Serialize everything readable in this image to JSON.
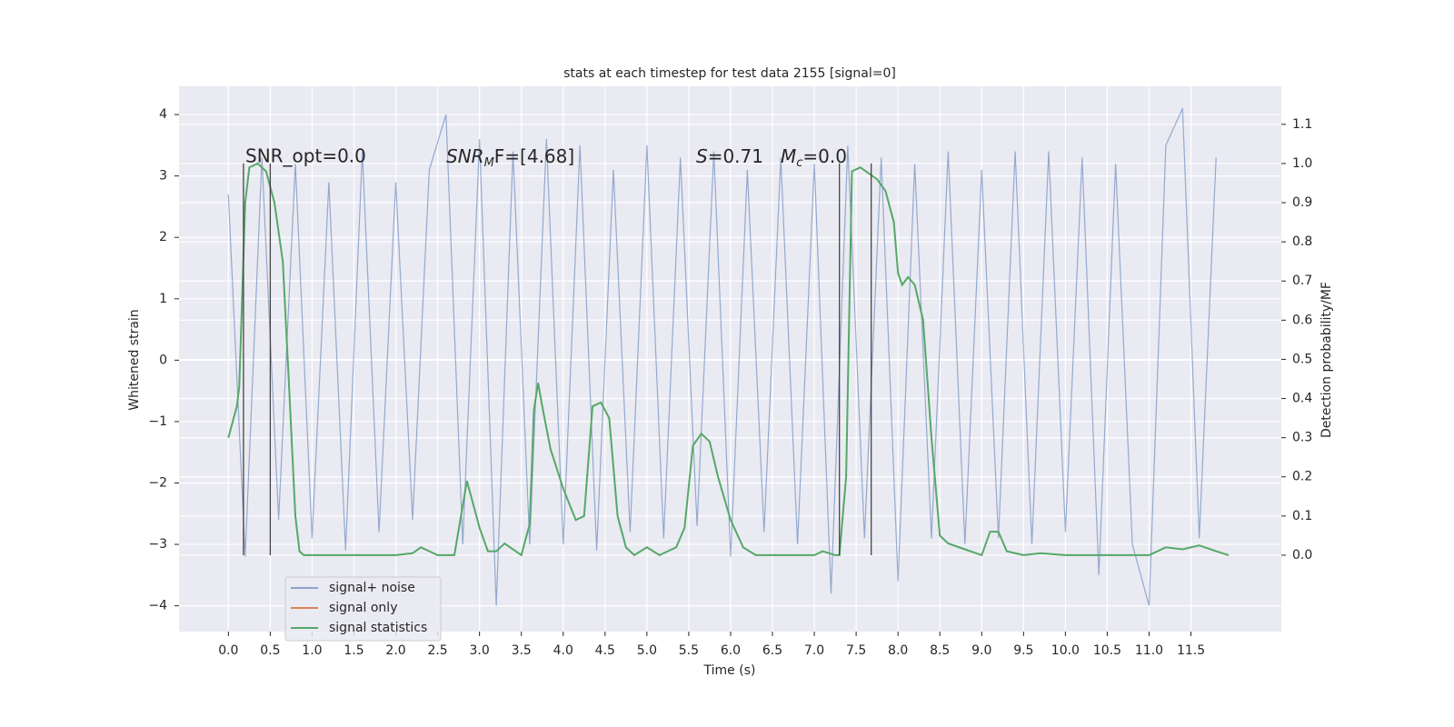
{
  "chart_data": {
    "type": "line",
    "title": "stats at each timestep for test data 2155 [signal=0]",
    "xlabel": "Time (s)",
    "ylabel": "Whitened strain",
    "y2label": "Detection probability/MF",
    "xlim": [
      -0.59,
      12.58
    ],
    "ylim": [
      -4.42,
      4.46
    ],
    "y2lim": [
      -0.195,
      1.197
    ],
    "grid": true,
    "legend": "lower left",
    "xticks": [
      {
        "value": 0,
        "label": "0.0"
      },
      {
        "value": 0.5,
        "label": "0.5"
      },
      {
        "value": 1,
        "label": "1.0"
      },
      {
        "value": 1.5,
        "label": "1.5"
      },
      {
        "value": 2,
        "label": "2.0"
      },
      {
        "value": 2.5,
        "label": "2.5"
      },
      {
        "value": 3,
        "label": "3.0"
      },
      {
        "value": 3.5,
        "label": "3.5"
      },
      {
        "value": 4,
        "label": "4.0"
      },
      {
        "value": 4.5,
        "label": "4.5"
      },
      {
        "value": 5,
        "label": "5.0"
      },
      {
        "value": 5.5,
        "label": "5.5"
      },
      {
        "value": 6,
        "label": "6.0"
      },
      {
        "value": 6.5,
        "label": "6.5"
      },
      {
        "value": 7,
        "label": "7.0"
      },
      {
        "value": 7.5,
        "label": "7.5"
      },
      {
        "value": 8,
        "label": "8.0"
      },
      {
        "value": 8.5,
        "label": "8.5"
      },
      {
        "value": 9,
        "label": "9.0"
      },
      {
        "value": 9.5,
        "label": "9.5"
      },
      {
        "value": 10,
        "label": "10.0"
      },
      {
        "value": 10.5,
        "label": "10.5"
      },
      {
        "value": 11,
        "label": "11.0"
      },
      {
        "value": 11.5,
        "label": "11.5"
      }
    ],
    "yticks": [
      {
        "value": -4,
        "label": "−4"
      },
      {
        "value": -3,
        "label": "−3"
      },
      {
        "value": -2,
        "label": "−2"
      },
      {
        "value": -1,
        "label": "−1"
      },
      0,
      1,
      2,
      3,
      4
    ],
    "y2ticks": [
      {
        "value": 0,
        "label": "0.0"
      },
      {
        "value": 0.1,
        "label": "0.1"
      },
      {
        "value": 0.2,
        "label": "0.2"
      },
      {
        "value": 0.3,
        "label": "0.3"
      },
      {
        "value": 0.4,
        "label": "0.4"
      },
      {
        "value": 0.5,
        "label": "0.5"
      },
      {
        "value": 0.6,
        "label": "0.6"
      },
      {
        "value": 0.7,
        "label": "0.7"
      },
      {
        "value": 0.8,
        "label": "0.8"
      },
      {
        "value": 0.9,
        "label": "0.9"
      },
      {
        "value": 1,
        "label": "1.0"
      },
      {
        "value": 1.1,
        "label": "1.1"
      }
    ],
    "series": [
      {
        "name": "signal+ noise",
        "color": "#4c72b0",
        "x": [
          0,
          0.2,
          0.4,
          0.6,
          0.8,
          1,
          1.2,
          1.4,
          1.6,
          1.8,
          2,
          2.2,
          2.4,
          2.6,
          2.8,
          3,
          3.2,
          3.4,
          3.6,
          3.8,
          4,
          4.2,
          4.4,
          4.6,
          4.8,
          5,
          5.2,
          5.4,
          5.6,
          5.8,
          6,
          6.2,
          6.4,
          6.6,
          6.8,
          7,
          7.2,
          7.4,
          7.6,
          7.8,
          8,
          8.2,
          8.4,
          8.6,
          8.8,
          9,
          9.2,
          9.4,
          9.6,
          9.8,
          10,
          10.2,
          10.4,
          10.6,
          10.8,
          11,
          11.2,
          11.4,
          11.6,
          11.8
        ],
        "values": [
          2.7,
          -3.2,
          3.3,
          -2.6,
          3.2,
          -2.9,
          2.9,
          -3.1,
          3.4,
          -2.8,
          2.9,
          -2.6,
          3.1,
          4.0,
          -3.0,
          3.6,
          -4.0,
          3.4,
          -3.0,
          3.6,
          -3.0,
          3.5,
          -3.1,
          3.1,
          -2.8,
          3.5,
          -2.9,
          3.3,
          -2.7,
          3.4,
          -3.2,
          3.1,
          -2.8,
          3.3,
          -3.0,
          3.2,
          -3.8,
          3.5,
          -2.9,
          3.3,
          -3.6,
          3.2,
          -2.9,
          3.4,
          -3.0,
          3.1,
          -2.9,
          3.4,
          -3.0,
          3.4,
          -2.8,
          3.3,
          -3.5,
          3.2,
          -3.0,
          -4.0,
          3.5,
          4.1,
          -2.9,
          3.3
        ]
      },
      {
        "name": "signal only",
        "color": "#dd8452"
      },
      {
        "name": "signal statistics",
        "color": "#55a868",
        "axis": "y2",
        "x": [
          0,
          0.1,
          0.13,
          0.2,
          0.25,
          0.35,
          0.45,
          0.55,
          0.65,
          0.72,
          0.8,
          0.85,
          0.9,
          1.5,
          2,
          2.2,
          2.3,
          2.5,
          2.7,
          2.85,
          3,
          3.1,
          3.2,
          3.3,
          3.5,
          3.6,
          3.65,
          3.7,
          3.75,
          3.85,
          4,
          4.15,
          4.25,
          4.35,
          4.45,
          4.55,
          4.65,
          4.75,
          4.85,
          5,
          5.15,
          5.35,
          5.45,
          5.55,
          5.65,
          5.75,
          5.85,
          6,
          6.15,
          6.3,
          7,
          7.1,
          7.25,
          7.3,
          7.38,
          7.45,
          7.55,
          7.75,
          7.85,
          7.95,
          8,
          8.05,
          8.12,
          8.2,
          8.3,
          8.4,
          8.5,
          8.6,
          8.8,
          9,
          9.1,
          9.2,
          9.3,
          9.5,
          9.7,
          10,
          11,
          11.2,
          11.4,
          11.6,
          11.8,
          11.95
        ],
        "values": [
          0.3,
          0.38,
          0.43,
          0.9,
          0.99,
          1.0,
          0.98,
          0.9,
          0.75,
          0.45,
          0.1,
          0.01,
          0.0,
          0.0,
          0.0,
          0.005,
          0.02,
          0.0,
          0.0,
          0.19,
          0.07,
          0.01,
          0.01,
          0.03,
          0.0,
          0.08,
          0.37,
          0.44,
          0.38,
          0.27,
          0.17,
          0.09,
          0.1,
          0.38,
          0.39,
          0.35,
          0.1,
          0.02,
          0.0,
          0.02,
          0.0,
          0.02,
          0.07,
          0.28,
          0.31,
          0.29,
          0.2,
          0.09,
          0.02,
          0.0,
          0.0,
          0.01,
          0.0,
          0.0,
          0.2,
          0.98,
          0.99,
          0.96,
          0.93,
          0.85,
          0.72,
          0.69,
          0.71,
          0.69,
          0.6,
          0.3,
          0.05,
          0.03,
          0.015,
          0.0,
          0.06,
          0.06,
          0.01,
          0.0,
          0.005,
          0.0,
          0.0,
          0.02,
          0.015,
          0.025,
          0.01,
          0.0
        ]
      }
    ],
    "vlines": [
      0.18,
      0.5,
      7.3,
      7.68
    ],
    "vline_span": [
      0,
      1
    ],
    "annotations": [
      {
        "text": "SNR_opt=0.0"
      },
      {
        "base": "SNR",
        "sub": "M",
        "rest": "F=[4.68]"
      },
      {
        "base": "S",
        "rest": "=0.71"
      },
      {
        "base": "M",
        "sub": "c",
        "rest": "=0.0"
      }
    ]
  }
}
